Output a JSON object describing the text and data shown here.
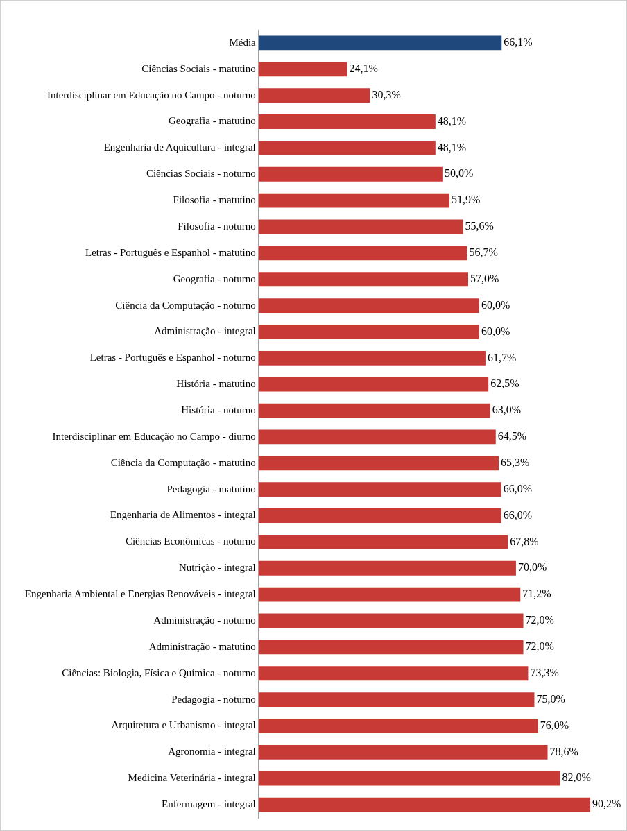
{
  "chart_data": {
    "type": "bar",
    "orientation": "horizontal",
    "categories": [
      "Média",
      "Ciências Sociais - matutino",
      "Interdisciplinar em Educação no Campo - noturno",
      "Geografia - matutino",
      "Engenharia de Aquicultura - integral",
      "Ciências Sociais - noturno",
      "Filosofia - matutino",
      "Filosofia - noturno",
      "Letras - Português e Espanhol - matutino",
      "Geografia - noturno",
      "Ciência da Computação - noturno",
      "Administração - integral",
      "Letras - Português e Espanhol - noturno",
      "História - matutino",
      "História - noturno",
      "Interdisciplinar em Educação no Campo - diurno",
      "Ciência da Computação - matutino",
      "Pedagogia - matutino",
      "Engenharia de Alimentos - integral",
      "Ciências Econômicas - noturno",
      "Nutrição - integral",
      "Engenharia Ambiental e Energias Renováveis - integral",
      "Administração - noturno",
      "Administração - matutino",
      "Ciências: Biologia, Física e Química - noturno",
      "Pedagogia - noturno",
      "Arquitetura e Urbanismo - integral",
      "Agronomia - integral",
      "Medicina Veterinária - integral",
      "Enfermagem - integral"
    ],
    "values": [
      66.1,
      24.1,
      30.3,
      48.1,
      48.1,
      50.0,
      51.9,
      55.6,
      56.7,
      57.0,
      60.0,
      60.0,
      61.7,
      62.5,
      63.0,
      64.5,
      65.3,
      66.0,
      66.0,
      67.8,
      70.0,
      71.2,
      72.0,
      72.0,
      73.3,
      75.0,
      76.0,
      78.6,
      82.0,
      90.2
    ],
    "value_labels": [
      "66,1%",
      "24,1%",
      "30,3%",
      "48,1%",
      "48,1%",
      "50,0%",
      "51,9%",
      "55,6%",
      "56,7%",
      "57,0%",
      "60,0%",
      "60,0%",
      "61,7%",
      "62,5%",
      "63,0%",
      "64,5%",
      "65,3%",
      "66,0%",
      "66,0%",
      "67,8%",
      "70,0%",
      "71,2%",
      "72,0%",
      "72,0%",
      "73,3%",
      "75,0%",
      "76,0%",
      "78,6%",
      "82,0%",
      "90,2%"
    ],
    "colors": [
      "#1f497d",
      "#c83a36",
      "#c83a36",
      "#c83a36",
      "#c83a36",
      "#c83a36",
      "#c83a36",
      "#c83a36",
      "#c83a36",
      "#c83a36",
      "#c83a36",
      "#c83a36",
      "#c83a36",
      "#c83a36",
      "#c83a36",
      "#c83a36",
      "#c83a36",
      "#c83a36",
      "#c83a36",
      "#c83a36",
      "#c83a36",
      "#c83a36",
      "#c83a36",
      "#c83a36",
      "#c83a36",
      "#c83a36",
      "#c83a36",
      "#c83a36",
      "#c83a36",
      "#c83a36"
    ],
    "xlim": [
      0,
      100
    ],
    "tick_labels": "y",
    "legend": false
  }
}
